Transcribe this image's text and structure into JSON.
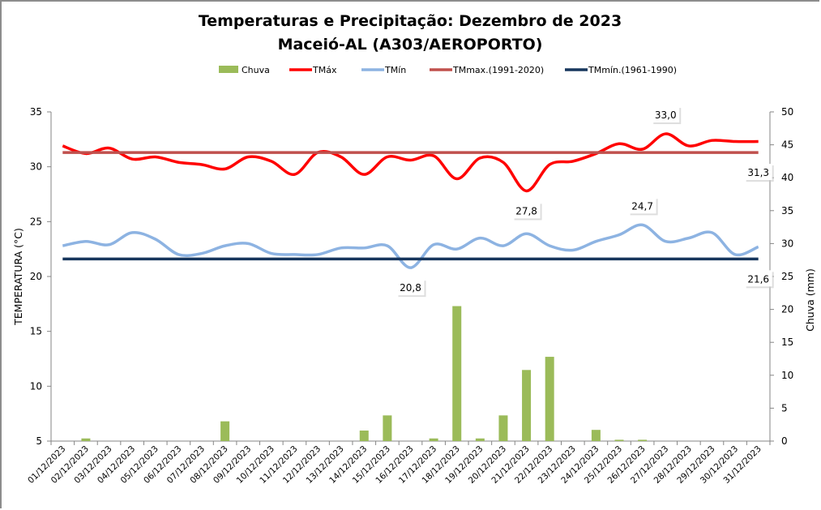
{
  "chart_data": {
    "type": "bar+line",
    "title": "Temperaturas e Precipitação: Dezembro de 2023",
    "subtitle": "Maceió-AL (A303/AEROPORTO)",
    "ylabel": "TEMPERATURA (°C)",
    "y2label": "Chuva (mm)",
    "ylim": [
      5,
      35
    ],
    "y2lim": [
      0,
      50
    ],
    "yticks": [
      "5",
      "10",
      "15",
      "20",
      "25",
      "30",
      "35"
    ],
    "y2ticks": [
      "0",
      "5",
      "10",
      "15",
      "20",
      "25",
      "30",
      "35",
      "40",
      "45",
      "50"
    ],
    "legend_position": "top",
    "grid": false,
    "categories": [
      "01/12/2023",
      "02/12/2023",
      "03/12/2023",
      "04/12/2023",
      "05/12/2023",
      "06/12/2023",
      "07/12/2023",
      "08/12/2023",
      "09/12/2023",
      "10/12/2023",
      "11/12/2023",
      "12/12/2023",
      "13/12/2023",
      "14/12/2023",
      "15/12/2023",
      "16/12/2023",
      "17/12/2023",
      "18/12/2023",
      "19/12/2023",
      "20/12/2023",
      "21/12/2023",
      "22/12/2023",
      "23/12/2023",
      "24/12/2023",
      "25/12/2023",
      "26/12/2023",
      "27/12/2023",
      "28/12/2023",
      "29/12/2023",
      "30/12/2023",
      "31/12/2023"
    ],
    "series": [
      {
        "name": "Chuva",
        "type": "bar",
        "axis": "right",
        "color": "#9bbb59",
        "values": [
          0,
          0.4,
          0,
          0,
          0,
          0,
          0,
          3.0,
          0,
          0,
          0,
          0,
          0,
          1.6,
          3.9,
          0,
          0.4,
          20.5,
          0.4,
          3.9,
          10.8,
          12.8,
          0,
          1.7,
          0.2,
          0.2,
          0,
          0,
          0,
          0,
          0
        ]
      },
      {
        "name": "TMáx",
        "type": "line",
        "axis": "left",
        "color": "#ff0000",
        "values": [
          31.9,
          31.2,
          31.7,
          30.7,
          30.9,
          30.4,
          30.2,
          29.8,
          30.9,
          30.5,
          29.3,
          31.3,
          30.9,
          29.3,
          30.9,
          30.6,
          31.0,
          28.9,
          30.8,
          30.4,
          27.8,
          30.2,
          30.5,
          31.2,
          32.1,
          31.6,
          33.0,
          31.9,
          32.4,
          32.3,
          32.3
        ]
      },
      {
        "name": "TMín",
        "type": "line",
        "axis": "left",
        "color": "#8db3e2",
        "values": [
          22.8,
          23.2,
          22.9,
          24.0,
          23.4,
          22.0,
          22.1,
          22.8,
          23.0,
          22.1,
          22.0,
          22.0,
          22.6,
          22.6,
          22.8,
          20.8,
          22.9,
          22.5,
          23.5,
          22.8,
          23.9,
          22.8,
          22.4,
          23.2,
          23.8,
          24.7,
          23.2,
          23.5,
          24.0,
          22.0,
          22.7
        ]
      },
      {
        "name": "TMmax.(1991-2020)",
        "type": "line",
        "axis": "left",
        "color": "#c0504d",
        "constant": 31.3
      },
      {
        "name": "TMmín.(1961-1990)",
        "type": "line",
        "axis": "left",
        "color": "#17365d",
        "constant": 21.6
      }
    ],
    "annotations": [
      {
        "series": "TMáx",
        "category": "27/12/2023",
        "text": "33,0",
        "place": "above"
      },
      {
        "series": "TMáx",
        "category": "21/12/2023",
        "text": "27,8",
        "place": "below"
      },
      {
        "series": "TMmax.(1991-2020)",
        "category": "31/12/2023",
        "text": "31,3",
        "place": "below"
      },
      {
        "series": "TMín",
        "category": "26/12/2023",
        "text": "24,7",
        "place": "above"
      },
      {
        "series": "TMín",
        "category": "16/12/2023",
        "text": "20,8",
        "place": "below"
      },
      {
        "series": "TMmín.(1961-1990)",
        "category": "31/12/2023",
        "text": "21,6",
        "place": "below"
      }
    ]
  }
}
